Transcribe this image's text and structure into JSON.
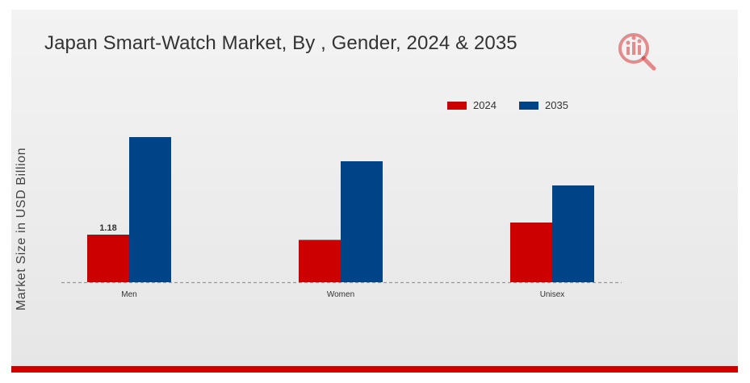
{
  "title": "Japan Smart-Watch Market, By , Gender, 2024 & 2035",
  "colors": {
    "series_2024": "#cc0000",
    "series_2035": "#004488",
    "accent_bar": "#cc0000",
    "logo": "#cc1111"
  },
  "logo_icon": "market-research-logo-icon",
  "chart_data": {
    "type": "bar",
    "title": "Japan Smart-Watch Market, By , Gender, 2024 & 2035",
    "xlabel": "",
    "ylabel": "Market Size in USD Billion",
    "categories": [
      "Men",
      "Women",
      "Unisex"
    ],
    "series": [
      {
        "name": "2024",
        "values": [
          1.18,
          1.05,
          1.48
        ]
      },
      {
        "name": "2035",
        "values": [
          3.6,
          3.0,
          2.4
        ]
      }
    ],
    "data_labels": [
      {
        "series": 0,
        "index": 0,
        "text": "1.18"
      }
    ],
    "ylim": [
      0,
      7.0
    ],
    "grid": false,
    "legend": "top-right"
  }
}
